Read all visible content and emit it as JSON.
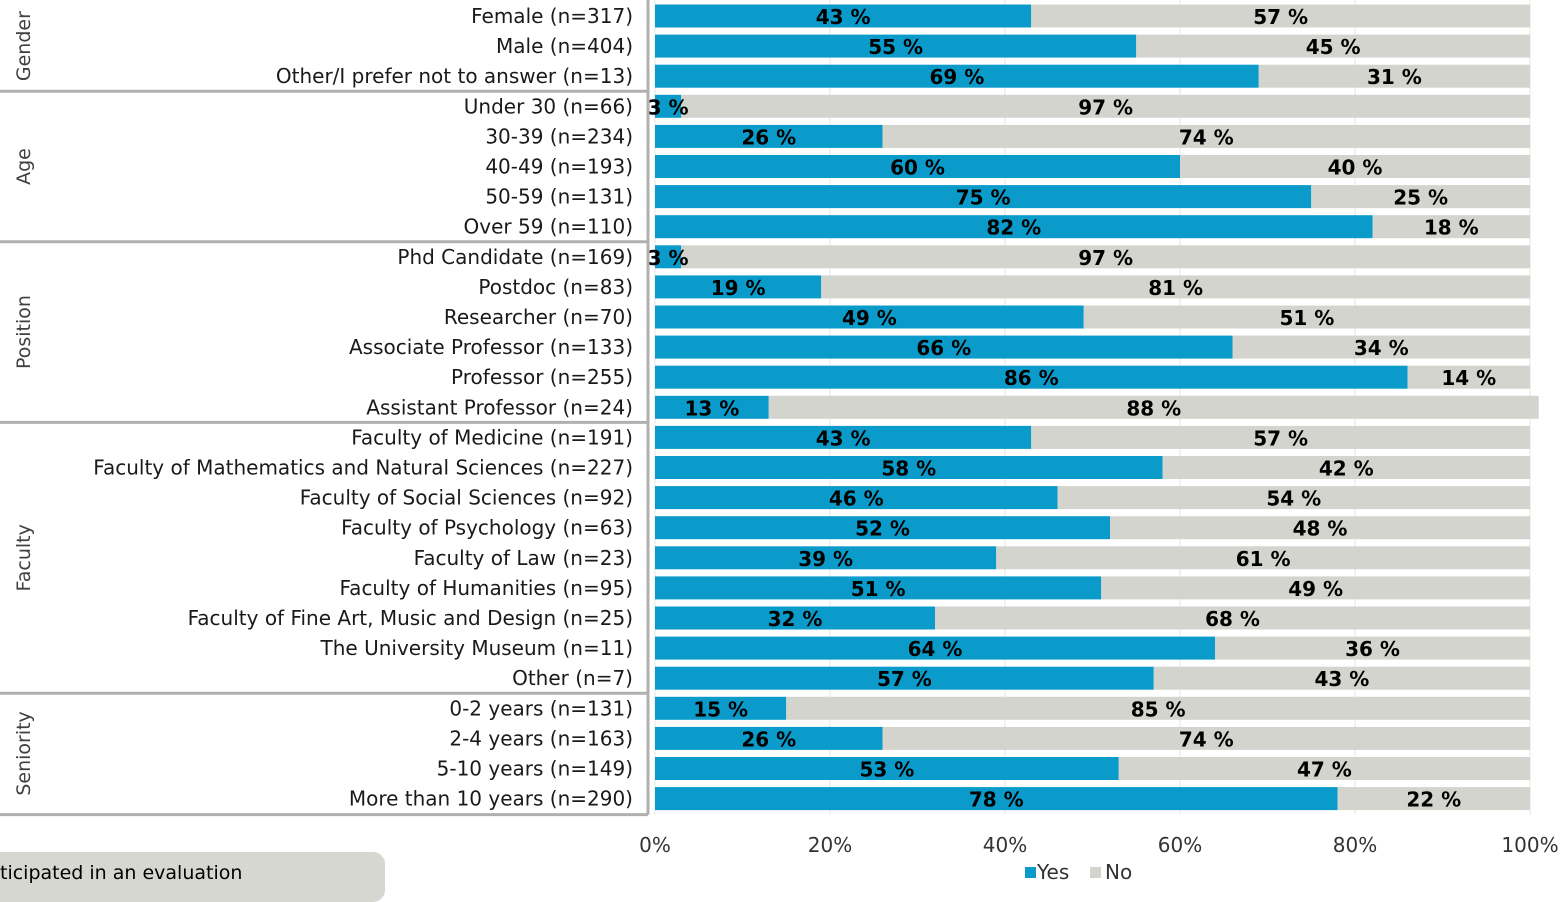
{
  "chart_data": {
    "type": "bar",
    "orientation": "horizontal",
    "stacked": true,
    "xlim": [
      0,
      100
    ],
    "xticks": [
      "0%",
      "20%",
      "40%",
      "60%",
      "80%",
      "100%"
    ],
    "grid": true,
    "legend_position": "bottom",
    "colors": {
      "Yes": "#0a9bcb",
      "No": "#d4d4ce"
    },
    "legend": [
      "Yes",
      "No"
    ],
    "groups": [
      {
        "name": "Gender",
        "start": 0,
        "count": 3
      },
      {
        "name": "Age",
        "start": 3,
        "count": 5
      },
      {
        "name": "Position",
        "start": 8,
        "count": 6
      },
      {
        "name": "Faculty",
        "start": 14,
        "count": 9
      },
      {
        "name": "Seniority",
        "start": 23,
        "count": 4
      }
    ],
    "categories": [
      "Female (n=317)",
      "Male (n=404)",
      "Other/I prefer not to answer (n=13)",
      "Under 30 (n=66)",
      "30-39 (n=234)",
      "40-49 (n=193)",
      "50-59 (n=131)",
      "Over 59 (n=110)",
      "Phd Candidate (n=169)",
      "Postdoc (n=83)",
      "Researcher (n=70)",
      "Associate Professor (n=133)",
      "Professor (n=255)",
      "Assistant Professor (n=24)",
      "Faculty of Medicine (n=191)",
      "Faculty of Mathematics and Natural Sciences (n=227)",
      "Faculty of Social Sciences (n=92)",
      "Faculty of Psychology (n=63)",
      "Faculty of Law (n=23)",
      "Faculty of Humanities (n=95)",
      "Faculty of Fine Art, Music and Design (n=25)",
      "The University Museum (n=11)",
      "Other (n=7)",
      "0-2 years (n=131)",
      "2-4 years (n=163)",
      "5-10 years (n=149)",
      "More than 10 years (n=290)"
    ],
    "series": [
      {
        "name": "Yes",
        "values": [
          43,
          55,
          69,
          3,
          26,
          60,
          75,
          82,
          3,
          19,
          49,
          66,
          86,
          13,
          43,
          58,
          46,
          52,
          39,
          51,
          32,
          64,
          57,
          15,
          26,
          53,
          78
        ]
      },
      {
        "name": "No",
        "values": [
          57,
          45,
          31,
          97,
          74,
          40,
          25,
          18,
          97,
          81,
          51,
          34,
          14,
          88,
          57,
          42,
          54,
          48,
          61,
          49,
          68,
          36,
          43,
          85,
          74,
          47,
          22
        ]
      }
    ]
  },
  "footnote": "ticipated in an evaluation"
}
